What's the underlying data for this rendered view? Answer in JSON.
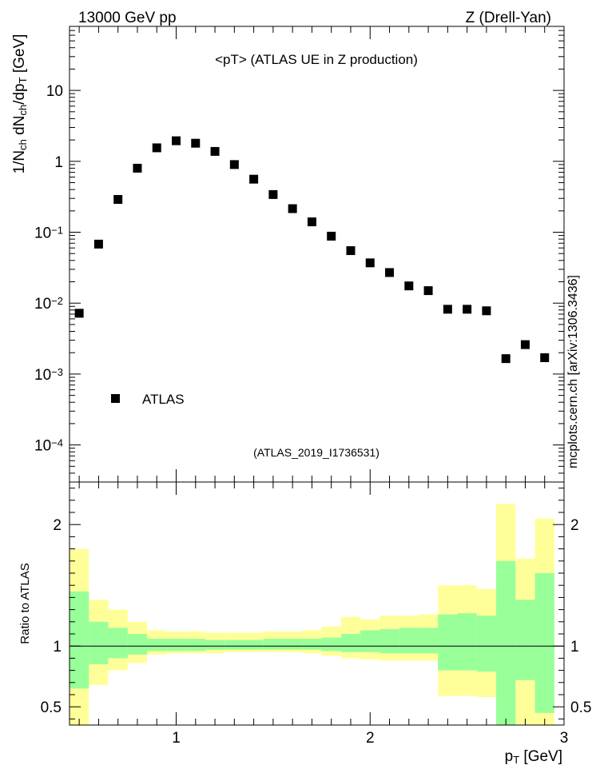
{
  "header": {
    "left": "13000 GeV pp",
    "right": "Z (Drell-Yan)"
  },
  "watermark": "mcplots.cern.ch [arXiv:1306.3436]",
  "colors": {
    "marker": "#000000",
    "band_inner": "#99ff99",
    "band_outer": "#ffff99",
    "tag": "#999999"
  },
  "chart_data": [
    {
      "type": "scatter",
      "title": "<pT> (ATLAS UE in Z production)",
      "subtitle": "(ATLAS_2019_I1736531)",
      "ylabel": "1/N_ch dN_ch/dp_T [GeV]",
      "yscale": "log",
      "ylim": [
        3e-05,
        80
      ],
      "xlim": [
        0.45,
        3.0
      ],
      "y_ticks": [
        {
          "v": 0.0001,
          "label": "10^-4"
        },
        {
          "v": 0.001,
          "label": "10^-3"
        },
        {
          "v": 0.01,
          "label": "10^-2"
        },
        {
          "v": 0.1,
          "label": "10^-1"
        },
        {
          "v": 1,
          "label": "1"
        },
        {
          "v": 10,
          "label": "10"
        }
      ],
      "legend": {
        "label": "ATLAS",
        "placement": "lower-left"
      },
      "series": [
        {
          "name": "ATLAS",
          "x": [
            0.5,
            0.6,
            0.7,
            0.8,
            0.9,
            1.0,
            1.1,
            1.2,
            1.3,
            1.4,
            1.5,
            1.6,
            1.7,
            1.8,
            1.9,
            2.0,
            2.1,
            2.2,
            2.3,
            2.4,
            2.5,
            2.6,
            2.7,
            2.8,
            2.9
          ],
          "y": [
            0.0072,
            0.068,
            0.29,
            0.8,
            1.55,
            1.95,
            1.8,
            1.38,
            0.9,
            0.56,
            0.34,
            0.215,
            0.14,
            0.088,
            0.055,
            0.037,
            0.027,
            0.0175,
            0.015,
            0.0082,
            0.0082,
            0.0078,
            0.00165,
            0.0026,
            0.0017
          ]
        }
      ]
    },
    {
      "type": "area",
      "ylabel": "Ratio to ATLAS",
      "xlabel": "p_T [GeV]",
      "ylim": [
        0.35,
        2.35
      ],
      "xlim": [
        0.45,
        3.0
      ],
      "x_ticks": [
        {
          "v": 1,
          "label": "1"
        },
        {
          "v": 2,
          "label": "2"
        },
        {
          "v": 3,
          "label": "3"
        }
      ],
      "y_ticks": [
        {
          "v": 0.5,
          "label": "0.5"
        },
        {
          "v": 1,
          "label": "1"
        },
        {
          "v": 2,
          "label": "2"
        }
      ],
      "reference_line": 1,
      "bin_edges": [
        0.45,
        0.55,
        0.65,
        0.75,
        0.85,
        0.95,
        1.05,
        1.15,
        1.25,
        1.35,
        1.45,
        1.55,
        1.65,
        1.75,
        1.85,
        1.95,
        2.05,
        2.15,
        2.25,
        2.35,
        2.45,
        2.55,
        2.65,
        2.75,
        2.85,
        2.95
      ],
      "series": [
        {
          "name": "outer band",
          "low": [
            0.35,
            0.68,
            0.8,
            0.86,
            0.93,
            0.94,
            0.94,
            0.94,
            0.95,
            0.95,
            0.95,
            0.95,
            0.94,
            0.92,
            0.9,
            0.89,
            0.88,
            0.88,
            0.88,
            0.59,
            0.59,
            0.58,
            0.35,
            0.35,
            0.35
          ],
          "high": [
            1.8,
            1.38,
            1.3,
            1.2,
            1.13,
            1.12,
            1.12,
            1.11,
            1.11,
            1.11,
            1.12,
            1.12,
            1.13,
            1.16,
            1.24,
            1.22,
            1.25,
            1.25,
            1.26,
            1.5,
            1.5,
            1.47,
            2.17,
            1.72,
            2.05
          ]
        },
        {
          "name": "inner band",
          "low": [
            0.65,
            0.85,
            0.9,
            0.93,
            0.96,
            0.96,
            0.96,
            0.97,
            0.97,
            0.97,
            0.97,
            0.97,
            0.97,
            0.96,
            0.95,
            0.95,
            0.94,
            0.94,
            0.94,
            0.8,
            0.8,
            0.79,
            0.35,
            0.72,
            0.45
          ],
          "high": [
            1.45,
            1.2,
            1.15,
            1.1,
            1.06,
            1.06,
            1.06,
            1.05,
            1.05,
            1.05,
            1.06,
            1.06,
            1.06,
            1.07,
            1.1,
            1.13,
            1.14,
            1.15,
            1.15,
            1.26,
            1.27,
            1.25,
            1.7,
            1.38,
            1.6
          ]
        }
      ]
    }
  ]
}
